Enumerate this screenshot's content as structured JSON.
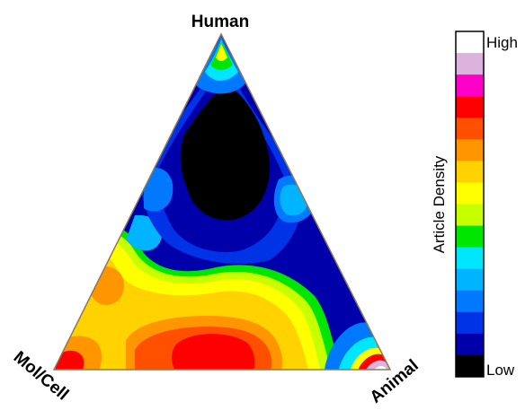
{
  "chart_data": {
    "type": "heatmap",
    "subtype": "ternary-density",
    "vertices": {
      "top": "Human",
      "bottom_left": "Mol/Cell",
      "bottom_right": "Animal"
    },
    "colorbar": {
      "title": "Article Density",
      "high_label": "High",
      "low_label": "Low",
      "colors_high_to_low": [
        "#ffffff",
        "#dcb3dc",
        "#ff00c8",
        "#ff0000",
        "#ff5000",
        "#ff9600",
        "#ffd200",
        "#ffff00",
        "#c8ff00",
        "#00e600",
        "#00e6ff",
        "#00b4ff",
        "#0078ff",
        "#0032e6",
        "#0000aa",
        "#000000"
      ]
    },
    "density_regions": [
      {
        "region": "Human apex",
        "level": 9
      },
      {
        "region": "Center (between Human and Mol/Cell)",
        "level": 0
      },
      {
        "region": "Upper left edge",
        "level": 3
      },
      {
        "region": "Upper right edge",
        "level": 3
      },
      {
        "region": "Left side of Mol/Cell edge",
        "level": 8
      },
      {
        "region": "Bottom center",
        "level": 12
      },
      {
        "region": "Lower right",
        "level": 2
      },
      {
        "region": "Animal vertex",
        "level": 15
      }
    ]
  }
}
